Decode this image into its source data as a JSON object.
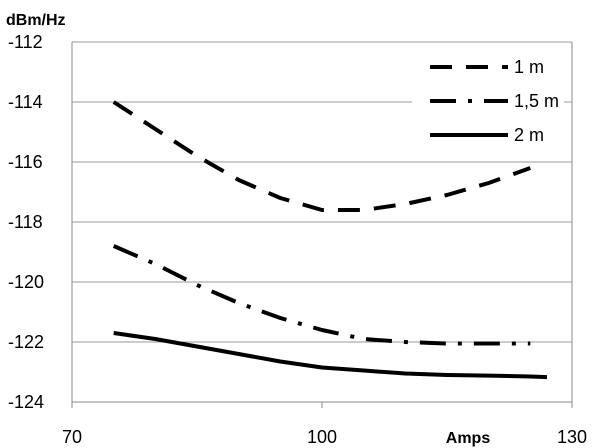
{
  "chart_data": {
    "type": "line",
    "title": "",
    "xlabel": "Amps",
    "ylabel": "dBm/Hz",
    "xlim": [
      70,
      130
    ],
    "ylim": [
      -124,
      -112
    ],
    "x_ticks": [
      70,
      100,
      130
    ],
    "y_ticks": [
      -112,
      -114,
      -116,
      -118,
      -120,
      -122,
      -124
    ],
    "grid": true,
    "legend_position": "top-right",
    "series": [
      {
        "name": "1 m",
        "line_style": "dashed",
        "color": "#000000",
        "x": [
          75,
          80,
          85,
          90,
          95,
          100,
          105,
          110,
          115,
          120,
          125
        ],
        "y": [
          -114.0,
          -114.9,
          -115.8,
          -116.6,
          -117.2,
          -117.6,
          -117.6,
          -117.4,
          -117.1,
          -116.7,
          -116.2
        ]
      },
      {
        "name": "1,5 m",
        "line_style": "dash-dot",
        "color": "#000000",
        "x": [
          75,
          80,
          85,
          90,
          95,
          100,
          105,
          110,
          115,
          120,
          125
        ],
        "y": [
          -118.8,
          -119.4,
          -120.1,
          -120.7,
          -121.2,
          -121.6,
          -121.9,
          -122.0,
          -122.05,
          -122.05,
          -122.05
        ]
      },
      {
        "name": "2 m",
        "line_style": "solid",
        "color": "#000000",
        "x": [
          75,
          80,
          85,
          90,
          95,
          100,
          105,
          110,
          115,
          120,
          125,
          127
        ],
        "y": [
          -121.7,
          -121.9,
          -122.15,
          -122.4,
          -122.65,
          -122.85,
          -122.95,
          -123.05,
          -123.1,
          -123.12,
          -123.15,
          -123.17
        ]
      }
    ]
  }
}
